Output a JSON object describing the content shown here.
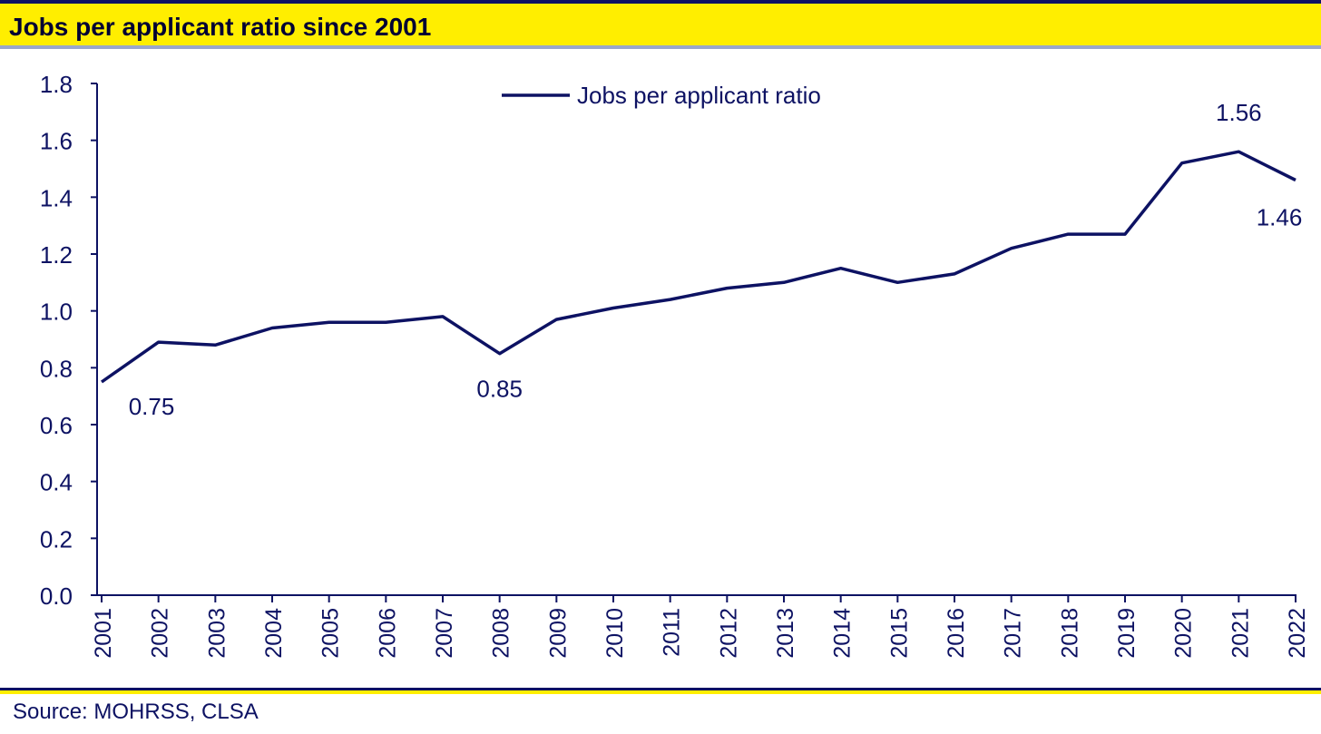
{
  "header": {
    "title": "Jobs per applicant ratio since 2001"
  },
  "footer": {
    "source": "Source: MOHRSS, CLSA"
  },
  "colors": {
    "line": "#0d1263",
    "title_band": "#ffee00",
    "axis": "#0d1263"
  },
  "chart_data": {
    "type": "line",
    "title": "Jobs per applicant ratio since 2001",
    "xlabel": "",
    "ylabel": "",
    "ylim": [
      0,
      1.8
    ],
    "yticks": [
      "0.0",
      "0.2",
      "0.4",
      "0.6",
      "0.8",
      "1.0",
      "1.2",
      "1.4",
      "1.6",
      "1.8"
    ],
    "categories": [
      "2001",
      "2002",
      "2003",
      "2004",
      "2005",
      "2006",
      "2007",
      "2008",
      "2009",
      "2010",
      "2011",
      "2012",
      "2013",
      "2014",
      "2015",
      "2016",
      "2017",
      "2018",
      "2019",
      "2020",
      "2021",
      "2022"
    ],
    "series": [
      {
        "name": "Jobs per applicant ratio",
        "values": [
          0.75,
          0.89,
          0.88,
          0.94,
          0.96,
          0.96,
          0.98,
          0.85,
          0.97,
          1.01,
          1.04,
          1.08,
          1.1,
          1.15,
          1.1,
          1.13,
          1.22,
          1.27,
          1.27,
          1.52,
          1.56,
          1.46
        ]
      }
    ],
    "annotations": [
      {
        "category": "2001",
        "label": "0.75"
      },
      {
        "category": "2008",
        "label": "0.85"
      },
      {
        "category": "2021",
        "label": "1.56"
      },
      {
        "category": "2022",
        "label": "1.46"
      }
    ],
    "legend": {
      "position": "top-center"
    },
    "grid": false
  }
}
